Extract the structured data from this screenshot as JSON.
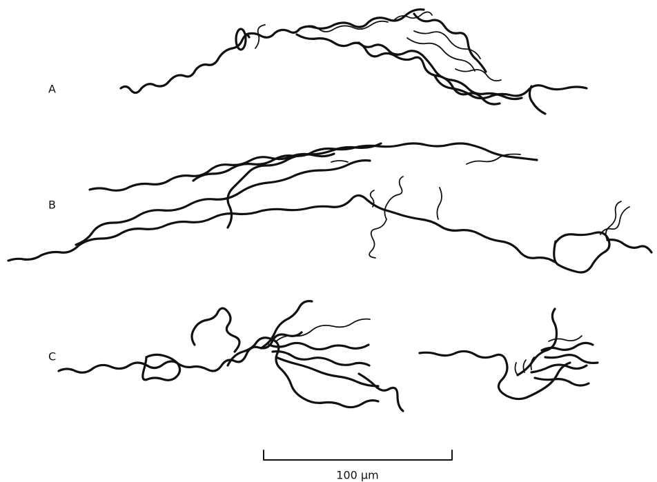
{
  "panels": [
    {
      "label": "A"
    },
    {
      "label": "B"
    },
    {
      "label": "C"
    }
  ],
  "scale_bar": {
    "label": "100 μm"
  }
}
